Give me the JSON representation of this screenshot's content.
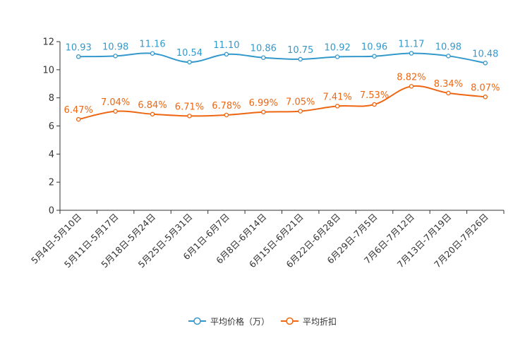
{
  "chart_data": {
    "type": "line",
    "categories": [
      "5月4日-5月10日",
      "5月11日-5月17日",
      "5月18日-5月24日",
      "5月25日-5月31日",
      "6月1日-6月7日",
      "6月8日-6月14日",
      "6月15日-6月21日",
      "6月22日-6月28日",
      "6月29日-7月5日",
      "7月6日-7月12日",
      "7月13日-7月19日",
      "7月20日-7月26日"
    ],
    "series": [
      {
        "name": "平均价格（万）",
        "color": "#3399cc",
        "values": [
          10.93,
          10.98,
          11.16,
          10.54,
          11.1,
          10.86,
          10.75,
          10.92,
          10.96,
          11.17,
          10.98,
          10.48
        ],
        "labels": [
          "10.93",
          "10.98",
          "11.16",
          "10.54",
          "11.10",
          "10.86",
          "10.75",
          "10.92",
          "10.96",
          "11.17",
          "10.98",
          "10.48"
        ]
      },
      {
        "name": "平均折扣",
        "color": "#ee6611",
        "values": [
          6.47,
          7.04,
          6.84,
          6.71,
          6.78,
          6.99,
          7.05,
          7.41,
          7.53,
          8.82,
          8.34,
          8.07
        ],
        "labels": [
          "6.47%",
          "7.04%",
          "6.84%",
          "6.71%",
          "6.78%",
          "6.99%",
          "7.05%",
          "7.41%",
          "7.53%",
          "8.82%",
          "8.34%",
          "8.07%"
        ]
      }
    ],
    "ylim": [
      0,
      12
    ],
    "yticks": [
      "0",
      "2",
      "4",
      "6",
      "8",
      "10",
      "12"
    ],
    "title": "",
    "xlabel": "",
    "ylabel": "",
    "legend_position": "bottom"
  }
}
